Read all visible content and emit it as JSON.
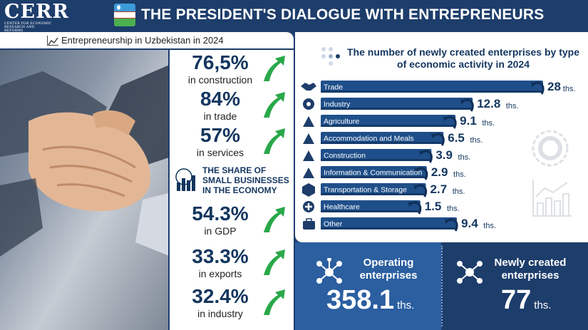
{
  "header": {
    "logo_text": "CERR",
    "logo_subtext": "CENTER FOR ECONOMIC RESEARCH AND REFORMS",
    "title": "THE PRESIDENT'S DIALOGUE WITH ENTREPRENEURS"
  },
  "subtitle": "Entrepreneurship in Uzbekistan in 2024",
  "stats": [
    {
      "value": "76,5%",
      "label": "in construction"
    },
    {
      "value": "84%",
      "label": "in trade"
    },
    {
      "value": "57%",
      "label": "in services"
    },
    {
      "value": "54.3%",
      "label": "in GDP"
    },
    {
      "value": "33.3%",
      "label": "in exports"
    },
    {
      "value": "32.4%",
      "label": "in industry"
    }
  ],
  "share_heading": "THE SHARE OF SMALL BUSINESSES IN THE ECONOMY",
  "chart_data": {
    "type": "bar",
    "title": "The number of newly created enterprises by type of economic activity in 2024",
    "unit": "ths.",
    "categories": [
      "Trade",
      "Industry",
      "Agriculture",
      "Accommodation and Meals",
      "Construction",
      "Information & Communication",
      "Transportation & Storage",
      "Healthcare",
      "Other"
    ],
    "values": [
      28,
      12.8,
      9.1,
      6.5,
      3.9,
      2.9,
      2.7,
      1.5,
      9.4
    ],
    "value_labels": [
      "28",
      "12.8",
      "9.1",
      "6.5",
      "3.9",
      "2.9",
      "2.7",
      "1.5",
      "9.4"
    ],
    "icons": [
      "handshake-icon",
      "gear-icon",
      "plant-icon",
      "hotel-icon",
      "crane-icon",
      "satellite-icon",
      "box-icon",
      "medical-cross-icon",
      "briefcase-icon"
    ]
  },
  "summary": {
    "operating_label": "Operating enterprises",
    "operating_value": "358.1",
    "new_label": "Newly created enterprises",
    "new_value": "77",
    "unit": "ths."
  },
  "colors": {
    "navy": "#1d3d6b",
    "blue": "#2b5fa0",
    "bar": "#1f4f8a",
    "arrow": "#2aa84a"
  }
}
